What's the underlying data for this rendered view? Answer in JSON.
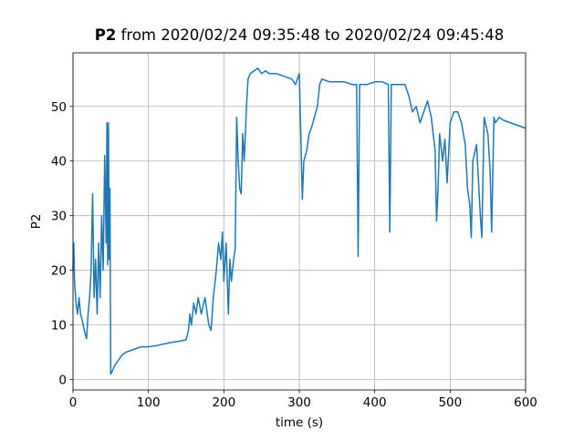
{
  "chart_data": {
    "type": "line",
    "title": {
      "variable": "P2",
      "range": "from 2020/02/24 09:35:48 to 2020/02/24 09:45:48"
    },
    "x_label": "time (s)",
    "y_label": "P2",
    "color": "#1f77b4",
    "grid": true,
    "xlim": [
      0,
      600
    ],
    "ylim": [
      -1.9,
      59.8
    ],
    "xticks": [
      0,
      100,
      200,
      300,
      400,
      500,
      600
    ],
    "yticks": [
      0,
      10,
      20,
      30,
      40,
      50
    ],
    "x": [
      0,
      1,
      2,
      4,
      6,
      8,
      10,
      12,
      15,
      18,
      20,
      22,
      24,
      26,
      28,
      30,
      32,
      34,
      36,
      38,
      40,
      42,
      44,
      45,
      46,
      47,
      48,
      49,
      50,
      52,
      55,
      60,
      65,
      70,
      80,
      90,
      100,
      110,
      120,
      130,
      140,
      150,
      153,
      155,
      157,
      160,
      163,
      166,
      170,
      175,
      180,
      183,
      186,
      190,
      193,
      196,
      198,
      200,
      203,
      206,
      208,
      210,
      213,
      215,
      217,
      219,
      221,
      223,
      225,
      227,
      230,
      232,
      235,
      240,
      245,
      250,
      255,
      260,
      270,
      280,
      290,
      295,
      300,
      302,
      304,
      306,
      310,
      313,
      316,
      320,
      324,
      327,
      330,
      340,
      350,
      360,
      370,
      376,
      378,
      380,
      390,
      400,
      410,
      418,
      420,
      422,
      430,
      440,
      445,
      450,
      455,
      460,
      465,
      470,
      475,
      480,
      482,
      484,
      486,
      490,
      493,
      496,
      500,
      505,
      510,
      515,
      520,
      523,
      526,
      528,
      530,
      535,
      540,
      542,
      545,
      550,
      553,
      555,
      558,
      560,
      565,
      570,
      580,
      590,
      600
    ],
    "values": [
      20,
      25,
      18,
      14,
      12,
      15,
      12,
      11,
      9,
      7.5,
      12,
      15,
      20,
      34,
      15,
      22,
      12,
      25,
      15,
      30,
      20,
      41,
      25,
      47,
      21,
      47,
      22,
      35,
      1,
      1.5,
      2.5,
      3.5,
      4.5,
      5,
      5.5,
      6,
      6,
      6.2,
      6.5,
      6.8,
      7,
      7.3,
      9,
      12,
      10,
      14,
      12,
      15,
      12,
      15,
      10,
      9,
      15,
      20,
      25,
      22,
      27,
      18,
      25,
      12,
      22,
      18,
      22,
      24,
      48,
      40,
      35,
      34,
      45,
      40,
      50,
      55,
      56,
      56.5,
      57,
      56,
      56.5,
      56,
      56,
      55.5,
      55,
      54,
      56,
      45,
      33,
      40,
      42,
      45,
      46,
      48,
      50,
      54,
      55,
      54.5,
      54.5,
      54.5,
      54,
      54,
      22.5,
      54,
      54,
      54.5,
      54.5,
      54,
      27,
      54,
      54,
      54,
      52,
      49,
      50,
      47,
      49,
      51,
      48,
      42,
      29,
      35,
      45,
      40,
      44,
      36,
      47,
      49,
      49,
      47,
      43,
      35,
      32,
      26,
      40,
      43,
      30,
      26,
      48,
      45,
      38,
      27,
      48,
      47,
      48,
      47.5,
      47,
      46.5,
      46
    ]
  }
}
